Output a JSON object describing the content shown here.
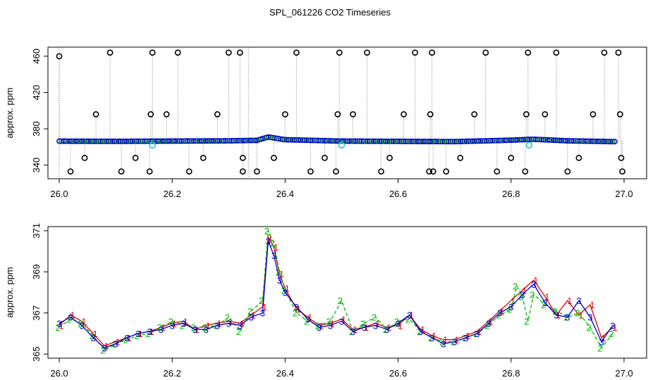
{
  "title": "SPL_061226  CO2 Timeseries",
  "colors": {
    "outlier": "#000000",
    "series1": "#dd0000",
    "series2": "#00bb00",
    "series3": "#0000cc",
    "cyan": "#33cccc",
    "grey": "#777777"
  },
  "chart_data": [
    {
      "type": "scatter",
      "panel": "top",
      "ylabel": "approx. ppm",
      "xlim": [
        26.0,
        27.0
      ],
      "ylim": [
        325,
        470
      ],
      "xticks": [
        "26.0",
        "26.2",
        "26.4",
        "26.6",
        "26.8",
        "27.0"
      ],
      "yticks": [
        "340",
        "380",
        "420",
        "460"
      ],
      "baseline": [
        [
          26.0,
          366.4
        ],
        [
          26.1,
          366.2
        ],
        [
          26.2,
          366.5
        ],
        [
          26.3,
          366.8
        ],
        [
          26.35,
          367.3
        ],
        [
          26.37,
          371.0
        ],
        [
          26.4,
          368.0
        ],
        [
          26.5,
          366.5
        ],
        [
          26.6,
          366.2
        ],
        [
          26.7,
          365.9
        ],
        [
          26.8,
          367.5
        ],
        [
          26.84,
          368.5
        ],
        [
          26.9,
          366.8
        ],
        [
          26.98,
          365.9
        ]
      ],
      "outliers": [
        [
          26.0,
          460
        ],
        [
          26.02,
          333
        ],
        [
          26.045,
          348
        ],
        [
          26.065,
          396
        ],
        [
          26.09,
          464
        ],
        [
          26.11,
          333
        ],
        [
          26.135,
          348
        ],
        [
          26.16,
          333
        ],
        [
          26.162,
          396
        ],
        [
          26.165,
          464
        ],
        [
          26.19,
          396
        ],
        [
          26.21,
          464
        ],
        [
          26.23,
          333
        ],
        [
          26.255,
          348
        ],
        [
          26.28,
          396
        ],
        [
          26.3,
          464
        ],
        [
          26.32,
          464
        ],
        [
          26.325,
          333
        ],
        [
          26.325,
          348
        ],
        [
          26.35,
          333
        ],
        [
          26.38,
          348
        ],
        [
          26.4,
          396
        ],
        [
          26.42,
          464
        ],
        [
          26.445,
          333
        ],
        [
          26.47,
          348
        ],
        [
          26.49,
          333
        ],
        [
          26.493,
          396
        ],
        [
          26.496,
          464
        ],
        [
          26.52,
          396
        ],
        [
          26.545,
          464
        ],
        [
          26.57,
          333
        ],
        [
          26.585,
          348
        ],
        [
          26.61,
          396
        ],
        [
          26.63,
          464
        ],
        [
          26.655,
          333
        ],
        [
          26.657,
          396
        ],
        [
          26.66,
          464
        ],
        [
          26.662,
          333
        ],
        [
          26.685,
          333
        ],
        [
          26.71,
          348
        ],
        [
          26.735,
          396
        ],
        [
          26.755,
          464
        ],
        [
          26.775,
          333
        ],
        [
          26.8,
          348
        ],
        [
          26.825,
          333
        ],
        [
          26.827,
          396
        ],
        [
          26.83,
          464
        ],
        [
          26.86,
          396
        ],
        [
          26.88,
          464
        ],
        [
          26.9,
          333
        ],
        [
          26.92,
          348
        ],
        [
          26.945,
          396
        ],
        [
          26.965,
          464
        ],
        [
          26.99,
          464
        ],
        [
          26.993,
          396
        ],
        [
          26.995,
          348
        ],
        [
          26.997,
          333
        ]
      ],
      "cyan_points": [
        [
          26.165,
          362
        ],
        [
          26.5,
          362
        ],
        [
          26.832,
          362
        ]
      ]
    },
    {
      "type": "line",
      "panel": "bottom",
      "ylabel": "approx. ppm",
      "xlim": [
        26.0,
        27.0
      ],
      "ylim": [
        364.8,
        371.2
      ],
      "xticks": [
        "26.0",
        "26.2",
        "26.4",
        "26.6",
        "26.8",
        "27.0"
      ],
      "yticks": [
        "365",
        "367",
        "369",
        "371"
      ],
      "series": [
        {
          "name": "1",
          "points": [
            [
              26.0,
              366.4
            ],
            [
              26.02,
              366.9
            ],
            [
              26.04,
              366.6
            ],
            [
              26.06,
              366.0
            ],
            [
              26.08,
              365.4
            ],
            [
              26.1,
              365.6
            ],
            [
              26.12,
              365.8
            ],
            [
              26.14,
              366.0
            ],
            [
              26.16,
              366.1
            ],
            [
              26.18,
              366.3
            ],
            [
              26.2,
              366.5
            ],
            [
              26.22,
              366.6
            ],
            [
              26.24,
              366.2
            ],
            [
              26.26,
              366.4
            ],
            [
              26.28,
              366.5
            ],
            [
              26.3,
              366.6
            ],
            [
              26.32,
              366.5
            ],
            [
              26.34,
              366.9
            ],
            [
              26.36,
              367.3
            ],
            [
              26.37,
              370.7
            ],
            [
              26.38,
              370.2
            ],
            [
              26.39,
              368.9
            ],
            [
              26.4,
              368.2
            ],
            [
              26.42,
              367.2
            ],
            [
              26.44,
              366.8
            ],
            [
              26.46,
              366.4
            ],
            [
              26.48,
              366.5
            ],
            [
              26.5,
              366.7
            ],
            [
              26.52,
              366.2
            ],
            [
              26.54,
              366.3
            ],
            [
              26.56,
              366.5
            ],
            [
              26.58,
              366.3
            ],
            [
              26.6,
              366.4
            ],
            [
              26.62,
              366.9
            ],
            [
              26.64,
              366.2
            ],
            [
              26.66,
              365.9
            ],
            [
              26.68,
              365.7
            ],
            [
              26.7,
              365.7
            ],
            [
              26.72,
              365.9
            ],
            [
              26.74,
              366.1
            ],
            [
              26.76,
              366.6
            ],
            [
              26.78,
              367.1
            ],
            [
              26.8,
              367.6
            ],
            [
              26.82,
              368.1
            ],
            [
              26.84,
              368.6
            ],
            [
              26.86,
              367.8
            ],
            [
              26.88,
              366.9
            ],
            [
              26.9,
              367.6
            ],
            [
              26.92,
              366.9
            ],
            [
              26.94,
              367.4
            ],
            [
              26.96,
              365.8
            ],
            [
              26.98,
              366.3
            ]
          ]
        },
        {
          "name": "2",
          "points": [
            [
              26.0,
              366.3
            ],
            [
              26.02,
              366.7
            ],
            [
              26.04,
              366.5
            ],
            [
              26.06,
              365.9
            ],
            [
              26.08,
              365.2
            ],
            [
              26.1,
              365.5
            ],
            [
              26.12,
              365.7
            ],
            [
              26.14,
              365.9
            ],
            [
              26.16,
              366.0
            ],
            [
              26.18,
              366.3
            ],
            [
              26.2,
              366.6
            ],
            [
              26.22,
              366.4
            ],
            [
              26.24,
              366.3
            ],
            [
              26.26,
              366.3
            ],
            [
              26.28,
              366.4
            ],
            [
              26.3,
              366.8
            ],
            [
              26.32,
              366.1
            ],
            [
              26.34,
              367.1
            ],
            [
              26.36,
              367.6
            ],
            [
              26.37,
              371.0
            ],
            [
              26.38,
              370.4
            ],
            [
              26.39,
              369.0
            ],
            [
              26.4,
              368.1
            ],
            [
              26.42,
              367.0
            ],
            [
              26.44,
              366.6
            ],
            [
              26.46,
              366.4
            ],
            [
              26.48,
              366.6
            ],
            [
              26.5,
              367.6
            ],
            [
              26.52,
              366.1
            ],
            [
              26.54,
              366.5
            ],
            [
              26.56,
              366.8
            ],
            [
              26.58,
              366.2
            ],
            [
              26.6,
              366.6
            ],
            [
              26.62,
              366.7
            ],
            [
              26.64,
              366.1
            ],
            [
              26.66,
              365.8
            ],
            [
              26.68,
              365.6
            ],
            [
              26.7,
              365.6
            ],
            [
              26.72,
              365.8
            ],
            [
              26.74,
              366.0
            ],
            [
              26.76,
              366.4
            ],
            [
              26.78,
              366.9
            ],
            [
              26.8,
              367.2
            ],
            [
              26.81,
              368.3
            ],
            [
              26.82,
              367.8
            ],
            [
              26.83,
              366.6
            ],
            [
              26.84,
              367.9
            ],
            [
              26.86,
              367.4
            ],
            [
              26.88,
              367.1
            ],
            [
              26.9,
              366.8
            ],
            [
              26.92,
              367.0
            ],
            [
              26.94,
              366.3
            ],
            [
              26.96,
              365.3
            ],
            [
              26.98,
              366.0
            ]
          ]
        },
        {
          "name": "3",
          "points": [
            [
              26.0,
              366.5
            ],
            [
              26.02,
              366.8
            ],
            [
              26.04,
              366.4
            ],
            [
              26.06,
              365.8
            ],
            [
              26.08,
              365.3
            ],
            [
              26.1,
              365.5
            ],
            [
              26.12,
              365.8
            ],
            [
              26.14,
              366.0
            ],
            [
              26.16,
              366.1
            ],
            [
              26.18,
              366.2
            ],
            [
              26.2,
              366.4
            ],
            [
              26.22,
              366.5
            ],
            [
              26.24,
              366.2
            ],
            [
              26.26,
              366.2
            ],
            [
              26.28,
              366.4
            ],
            [
              26.3,
              366.5
            ],
            [
              26.32,
              366.4
            ],
            [
              26.34,
              366.8
            ],
            [
              26.36,
              367.0
            ],
            [
              26.37,
              370.5
            ],
            [
              26.38,
              369.8
            ],
            [
              26.39,
              368.6
            ],
            [
              26.4,
              368.0
            ],
            [
              26.42,
              367.3
            ],
            [
              26.44,
              366.7
            ],
            [
              26.46,
              366.3
            ],
            [
              26.48,
              366.4
            ],
            [
              26.5,
              366.6
            ],
            [
              26.52,
              366.1
            ],
            [
              26.54,
              366.3
            ],
            [
              26.56,
              366.4
            ],
            [
              26.58,
              366.2
            ],
            [
              26.6,
              366.5
            ],
            [
              26.62,
              366.9
            ],
            [
              26.64,
              366.1
            ],
            [
              26.66,
              365.8
            ],
            [
              26.68,
              365.5
            ],
            [
              26.7,
              365.6
            ],
            [
              26.72,
              365.8
            ],
            [
              26.74,
              366.0
            ],
            [
              26.76,
              366.5
            ],
            [
              26.78,
              367.0
            ],
            [
              26.8,
              367.3
            ],
            [
              26.82,
              367.9
            ],
            [
              26.84,
              368.4
            ],
            [
              26.86,
              367.5
            ],
            [
              26.88,
              366.9
            ],
            [
              26.9,
              366.8
            ],
            [
              26.92,
              367.6
            ],
            [
              26.94,
              366.8
            ],
            [
              26.96,
              365.6
            ],
            [
              26.98,
              366.4
            ]
          ]
        }
      ]
    }
  ]
}
